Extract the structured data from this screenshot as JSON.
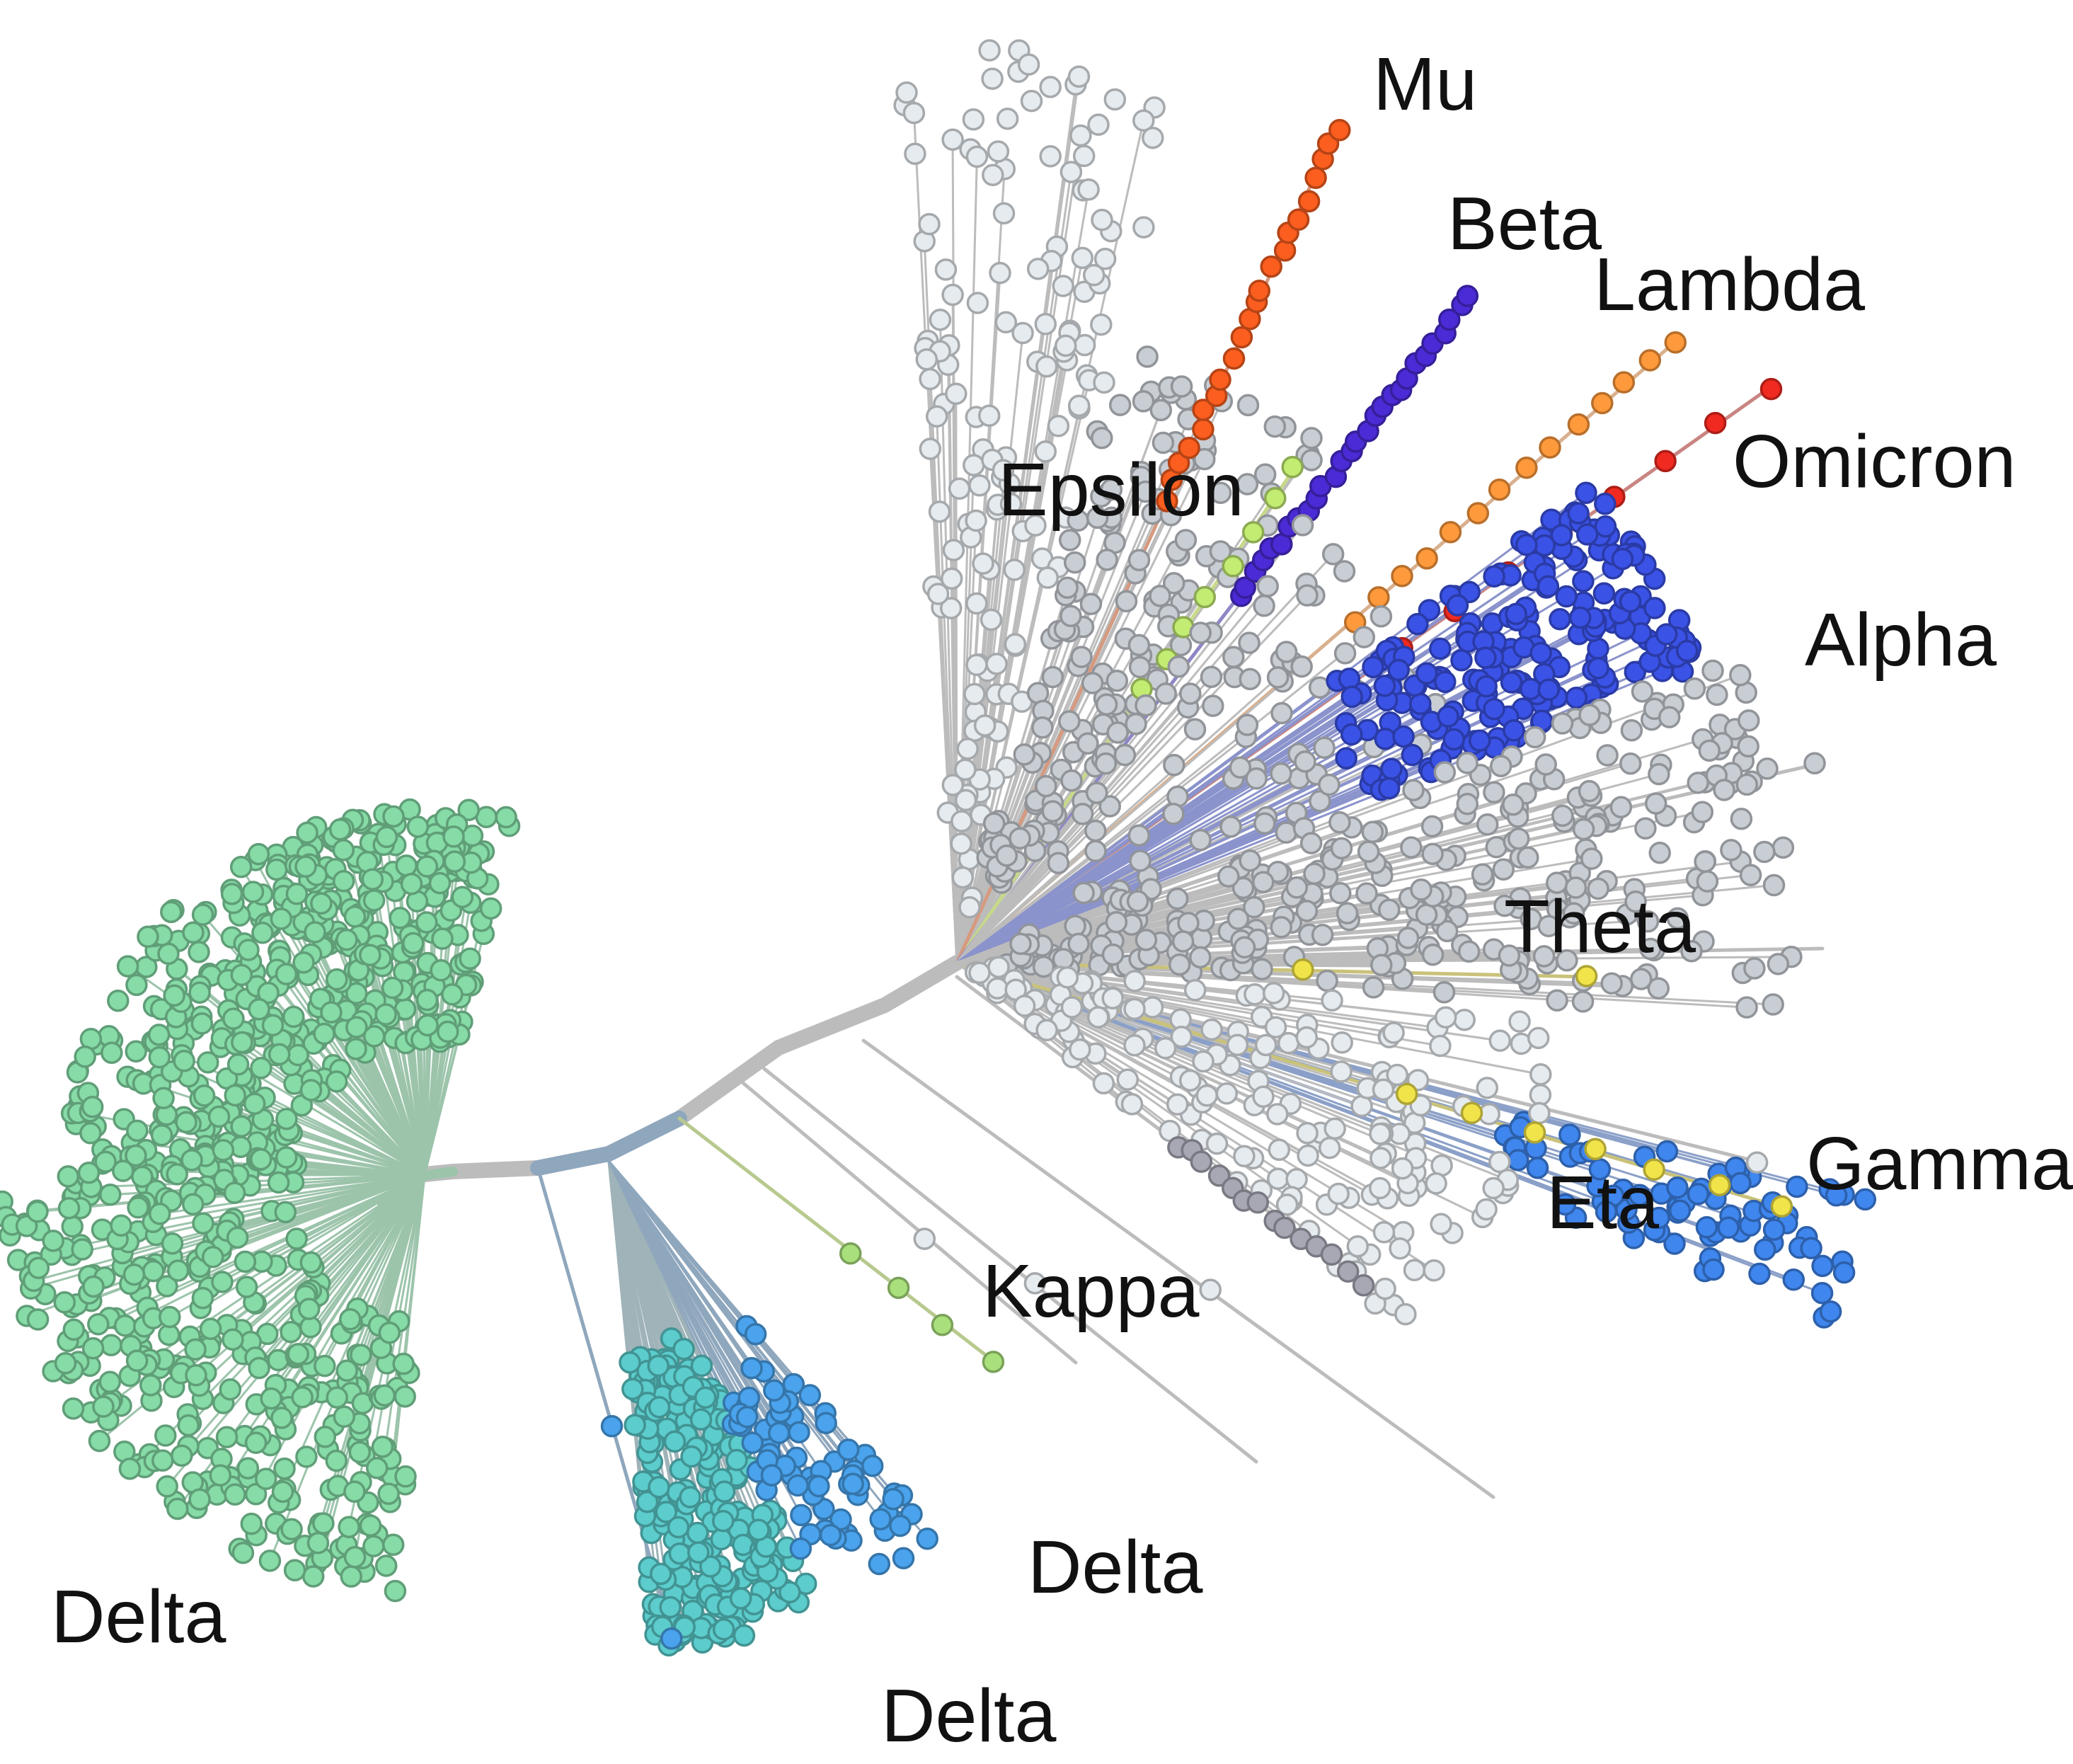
{
  "labels": {
    "mu": "Mu",
    "beta": "Beta",
    "lambda": "Lambda",
    "omicron": "Omicron",
    "epsilon": "Epsilon",
    "alpha": "Alpha",
    "theta": "Theta",
    "gamma": "Gamma",
    "eta": "Eta",
    "kappa": "Kappa",
    "delta_left": "Delta",
    "delta_bottom": "Delta",
    "delta_right": "Delta"
  },
  "colors": {
    "delta_green": "#86dba6",
    "delta_teal": "#5ccccc",
    "delta_blue": "#4aa3ec",
    "alpha": "#3b52e6",
    "gamma": "#3f86ee",
    "beta": "#4b2bd6",
    "lambda": "#ff9a3c",
    "omicron": "#f02a20",
    "mu": "#fb5e1f",
    "epsilon": "#c2ec72",
    "kappa": "#a9e07c",
    "eta": "#f1e44a",
    "theta": "#f1e44a",
    "grey_light": "#e6ebef",
    "grey_mid": "#c9ced4",
    "grey_dark": "#a7a8b4",
    "branch": "#bcbcbc"
  }
}
